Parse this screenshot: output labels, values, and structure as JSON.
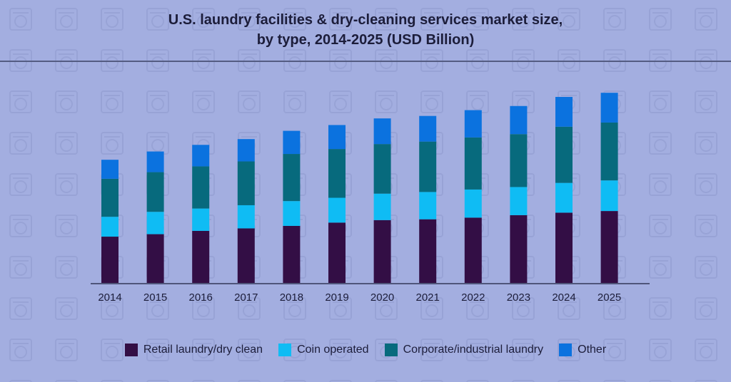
{
  "title_line1": "U.S. laundry facilities & dry-cleaning services market size,",
  "title_line2": "by type, 2014-2025 (USD Billion)",
  "colors": {
    "retail": "#330e45",
    "coin": "#0fbcf4",
    "corporate": "#076a7d",
    "other": "#0b72df",
    "axis": "#4f557a",
    "background": "#a3aee0"
  },
  "chart_data": {
    "type": "bar",
    "stacked": true,
    "categories": [
      "2014",
      "2015",
      "2016",
      "2017",
      "2018",
      "2019",
      "2020",
      "2021",
      "2022",
      "2023",
      "2024",
      "2025"
    ],
    "series": [
      {
        "name": "Retail laundry/dry clean",
        "values": [
          5.6,
          5.9,
          6.3,
          6.6,
          6.9,
          7.3,
          7.6,
          7.7,
          7.9,
          8.2,
          8.5,
          8.7
        ]
      },
      {
        "name": "Coin operated",
        "values": [
          2.4,
          2.7,
          2.7,
          2.8,
          3.0,
          3.0,
          3.2,
          3.3,
          3.4,
          3.4,
          3.6,
          3.7
        ]
      },
      {
        "name": "Corporate/industrial laundry",
        "values": [
          4.6,
          4.8,
          5.1,
          5.3,
          5.7,
          5.9,
          6.0,
          6.1,
          6.3,
          6.4,
          6.8,
          7.0
        ]
      },
      {
        "name": "Other",
        "values": [
          2.3,
          2.5,
          2.6,
          2.7,
          2.8,
          2.9,
          3.1,
          3.1,
          3.3,
          3.4,
          3.6,
          3.6
        ]
      }
    ],
    "ylim": [
      0,
      25
    ],
    "grid": false,
    "legend_position": "bottom"
  }
}
